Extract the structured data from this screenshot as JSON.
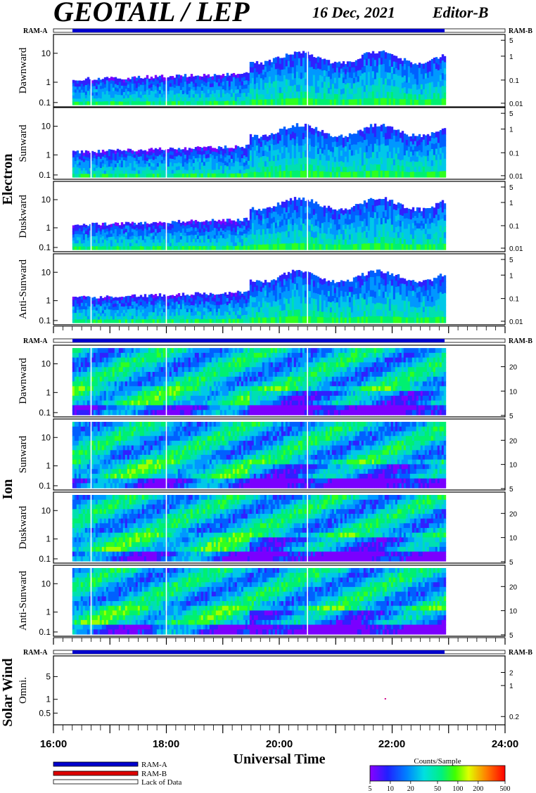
{
  "header": {
    "title": "GEOTAIL / LEP",
    "date": "16 Dec, 2021",
    "editor": "Editor-B"
  },
  "groups": {
    "electron": "Electron",
    "ion": "Ion",
    "solar_wind": "Solar Wind"
  },
  "ram_bars": {
    "left_label": "RAM-A",
    "right_label": "RAM-B"
  },
  "panels": [
    {
      "group": "electron",
      "label": "Dawnward",
      "left_ticks": [
        "10",
        "1",
        "0.1"
      ],
      "right_ticks": [
        "5",
        "1",
        "0.1",
        "0.01"
      ]
    },
    {
      "group": "electron",
      "label": "Sunward",
      "left_ticks": [
        "10",
        "1",
        "0.1"
      ],
      "right_ticks": [
        "5",
        "1",
        "0.1",
        "0.01"
      ]
    },
    {
      "group": "electron",
      "label": "Duskward",
      "left_ticks": [
        "10",
        "1",
        "0.1"
      ],
      "right_ticks": [
        "5",
        "1",
        "0.1",
        "0.01"
      ]
    },
    {
      "group": "electron",
      "label": "Anti-Sunward",
      "left_ticks": [
        "10",
        "1",
        "0.1"
      ],
      "right_ticks": [
        "5",
        "1",
        "0.1",
        "0.01"
      ]
    },
    {
      "group": "ion",
      "label": "Dawnward",
      "left_ticks": [
        "10",
        "1",
        "0.1"
      ],
      "right_ticks": [
        "20",
        "10",
        "5"
      ]
    },
    {
      "group": "ion",
      "label": "Sunward",
      "left_ticks": [
        "10",
        "1",
        "0.1"
      ],
      "right_ticks": [
        "20",
        "10",
        "5"
      ]
    },
    {
      "group": "ion",
      "label": "Duskward",
      "left_ticks": [
        "10",
        "1",
        "0.1"
      ],
      "right_ticks": [
        "20",
        "10",
        "5"
      ]
    },
    {
      "group": "ion",
      "label": "Anti-Sunward",
      "left_ticks": [
        "10",
        "1",
        "0.1"
      ],
      "right_ticks": [
        "20",
        "10",
        "5"
      ]
    },
    {
      "group": "solar_wind",
      "label": "Omni.",
      "left_ticks": [
        "5",
        "1",
        "0.5"
      ],
      "right_ticks": [
        "2",
        "1",
        "0.2"
      ]
    }
  ],
  "x_axis": {
    "ticks": [
      "16:00",
      "18:00",
      "20:00",
      "22:00",
      "24:00"
    ],
    "title": "Universal Time"
  },
  "legend": {
    "ram_a": "RAM-A",
    "ram_b": "RAM-B",
    "lack": "Lack of Data",
    "colorbar_title": "Counts/Sample",
    "colorbar_ticks": [
      "5",
      "10",
      "20",
      "50",
      "100",
      "200",
      "500"
    ],
    "colors": {
      "ram_a": "#0000cc",
      "ram_b": "#dd0000",
      "lack": "#ffffff"
    }
  },
  "chart_data": {
    "type": "heatmap",
    "title": "GEOTAIL / LEP",
    "xlabel": "Universal Time",
    "x_range": [
      "16:00",
      "24:00"
    ],
    "data_coverage": [
      "16:20",
      "22:55"
    ],
    "color_scale": {
      "label": "Counts/Sample",
      "min": 5,
      "max": 500,
      "scale": "log"
    },
    "electron_step_time": "19:27",
    "solar_wind_point": {
      "time": "21:52",
      "value": 1
    }
  }
}
